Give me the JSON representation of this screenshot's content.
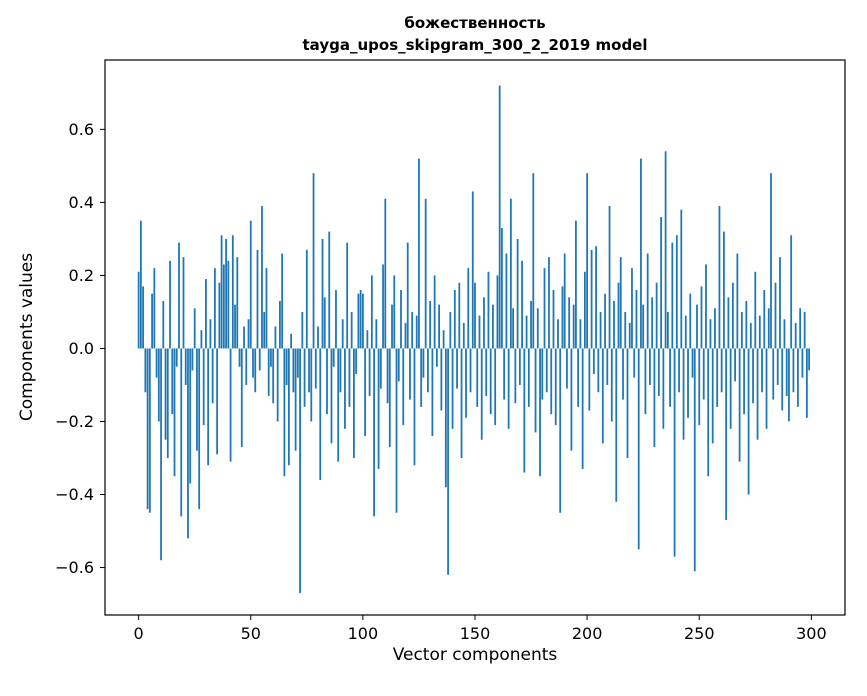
{
  "chart_data": {
    "type": "bar",
    "title": "божественность",
    "subtitle": "tayga_upos_skipgram_300_2_2019 model",
    "xlabel": "Vector components",
    "ylabel": "Components values",
    "xlim": [
      -15,
      315
    ],
    "ylim": [
      -0.73,
      0.79
    ],
    "xticks": [
      0,
      50,
      100,
      150,
      200,
      250,
      300
    ],
    "xtick_labels": [
      "0",
      "50",
      "100",
      "150",
      "200",
      "250",
      "300"
    ],
    "yticks": [
      -0.6,
      -0.4,
      -0.2,
      0,
      0.2,
      0.4,
      0.6
    ],
    "ytick_labels": [
      "−0.6",
      "−0.4",
      "−0.2",
      "0.0",
      "0.2",
      "0.4",
      "0.6"
    ],
    "bar_color": "#1f77b4",
    "grid": false,
    "legend": "none",
    "n_components": 300,
    "values": [
      0.21,
      0.35,
      0.17,
      -0.12,
      -0.44,
      -0.45,
      0.15,
      0.22,
      -0.08,
      -0.2,
      -0.58,
      0.13,
      -0.25,
      -0.3,
      0.24,
      -0.18,
      -0.35,
      -0.05,
      0.29,
      -0.46,
      0.25,
      -0.1,
      -0.52,
      -0.37,
      -0.06,
      0.11,
      -0.28,
      -0.44,
      0.05,
      -0.21,
      0.19,
      -0.32,
      0.08,
      -0.15,
      0.22,
      -0.29,
      0.18,
      0.31,
      0.23,
      0.3,
      0.24,
      -0.31,
      0.31,
      0.12,
      0.25,
      -0.05,
      -0.27,
      0.06,
      -0.1,
      0.08,
      0.35,
      -0.08,
      -0.12,
      0.27,
      -0.06,
      0.39,
      0.1,
      0.22,
      -0.13,
      -0.05,
      -0.15,
      0.06,
      -0.2,
      0.13,
      0.26,
      -0.35,
      -0.1,
      -0.32,
      0.04,
      -0.12,
      -0.28,
      -0.08,
      -0.67,
      0.1,
      -0.16,
      0.27,
      -0.12,
      -0.2,
      0.48,
      -0.11,
      0.06,
      -0.36,
      0.3,
      0.14,
      -0.18,
      0.32,
      -0.26,
      -0.05,
      0.16,
      -0.31,
      -0.12,
      0.08,
      -0.22,
      0.29,
      -0.16,
      0.1,
      -0.3,
      -0.07,
      0.15,
      0.16,
      0.15,
      -0.24,
      0.05,
      -0.13,
      0.2,
      -0.46,
      0.08,
      -0.33,
      -0.11,
      0.23,
      0.41,
      -0.15,
      -0.27,
      0.12,
      0.2,
      -0.45,
      -0.09,
      0.16,
      -0.21,
      0.07,
      0.29,
      -0.14,
      0.1,
      -0.32,
      0.09,
      0.52,
      -0.16,
      -0.08,
      0.41,
      -0.12,
      0.13,
      -0.24,
      0.2,
      -0.05,
      0.12,
      -0.17,
      0.05,
      -0.38,
      -0.62,
      0.1,
      -0.22,
      0.16,
      -0.11,
      0.18,
      -0.3,
      0.07,
      -0.19,
      0.22,
      -0.12,
      0.43,
      0.18,
      -0.16,
      0.09,
      -0.25,
      0.14,
      -0.13,
      0.21,
      -0.18,
      0.12,
      -0.21,
      0.2,
      0.72,
      0.33,
      -0.14,
      0.26,
      -0.22,
      0.41,
      0.11,
      -0.15,
      0.3,
      -0.1,
      0.24,
      -0.34,
      0.09,
      -0.16,
      0.13,
      0.48,
      -0.23,
      0.11,
      -0.35,
      -0.14,
      0.22,
      -0.12,
      0.25,
      -0.18,
      0.16,
      -0.21,
      0.08,
      -0.45,
      0.17,
      0.26,
      -0.11,
      0.14,
      -0.28,
      0.12,
      0.35,
      -0.16,
      0.08,
      -0.33,
      0.21,
      0.48,
      -0.17,
      0.27,
      -0.07,
      0.28,
      -0.12,
      0.1,
      -0.26,
      0.15,
      -0.1,
      0.39,
      -0.2,
      0.13,
      -0.42,
      0.18,
      0.25,
      -0.14,
      0.1,
      -0.3,
      0.07,
      0.22,
      -0.08,
      0.16,
      -0.55,
      0.52,
      0.12,
      -0.18,
      0.26,
      -0.1,
      0.14,
      -0.27,
      0.18,
      -0.13,
      0.36,
      -0.22,
      0.54,
      0.1,
      -0.16,
      0.29,
      -0.57,
      0.31,
      -0.12,
      0.38,
      -0.25,
      0.09,
      -0.19,
      0.15,
      -0.08,
      -0.61,
      0.12,
      -0.21,
      0.17,
      -0.14,
      0.23,
      -0.35,
      0.08,
      -0.26,
      0.11,
      -0.16,
      0.39,
      -0.12,
      0.32,
      -0.47,
      0.14,
      -0.22,
      0.18,
      -0.09,
      0.26,
      -0.31,
      0.1,
      -0.18,
      0.13,
      -0.4,
      0.07,
      -0.15,
      0.21,
      -0.25,
      0.09,
      -0.12,
      0.16,
      -0.22,
      0.11,
      0.48,
      -0.14,
      0.18,
      -0.1,
      0.25,
      -0.17,
      0.08,
      -0.13,
      -0.2,
      0.31,
      -0.12,
      0.07,
      -0.16,
      0.11,
      -0.08,
      0.1,
      -0.19,
      -0.06
    ]
  }
}
